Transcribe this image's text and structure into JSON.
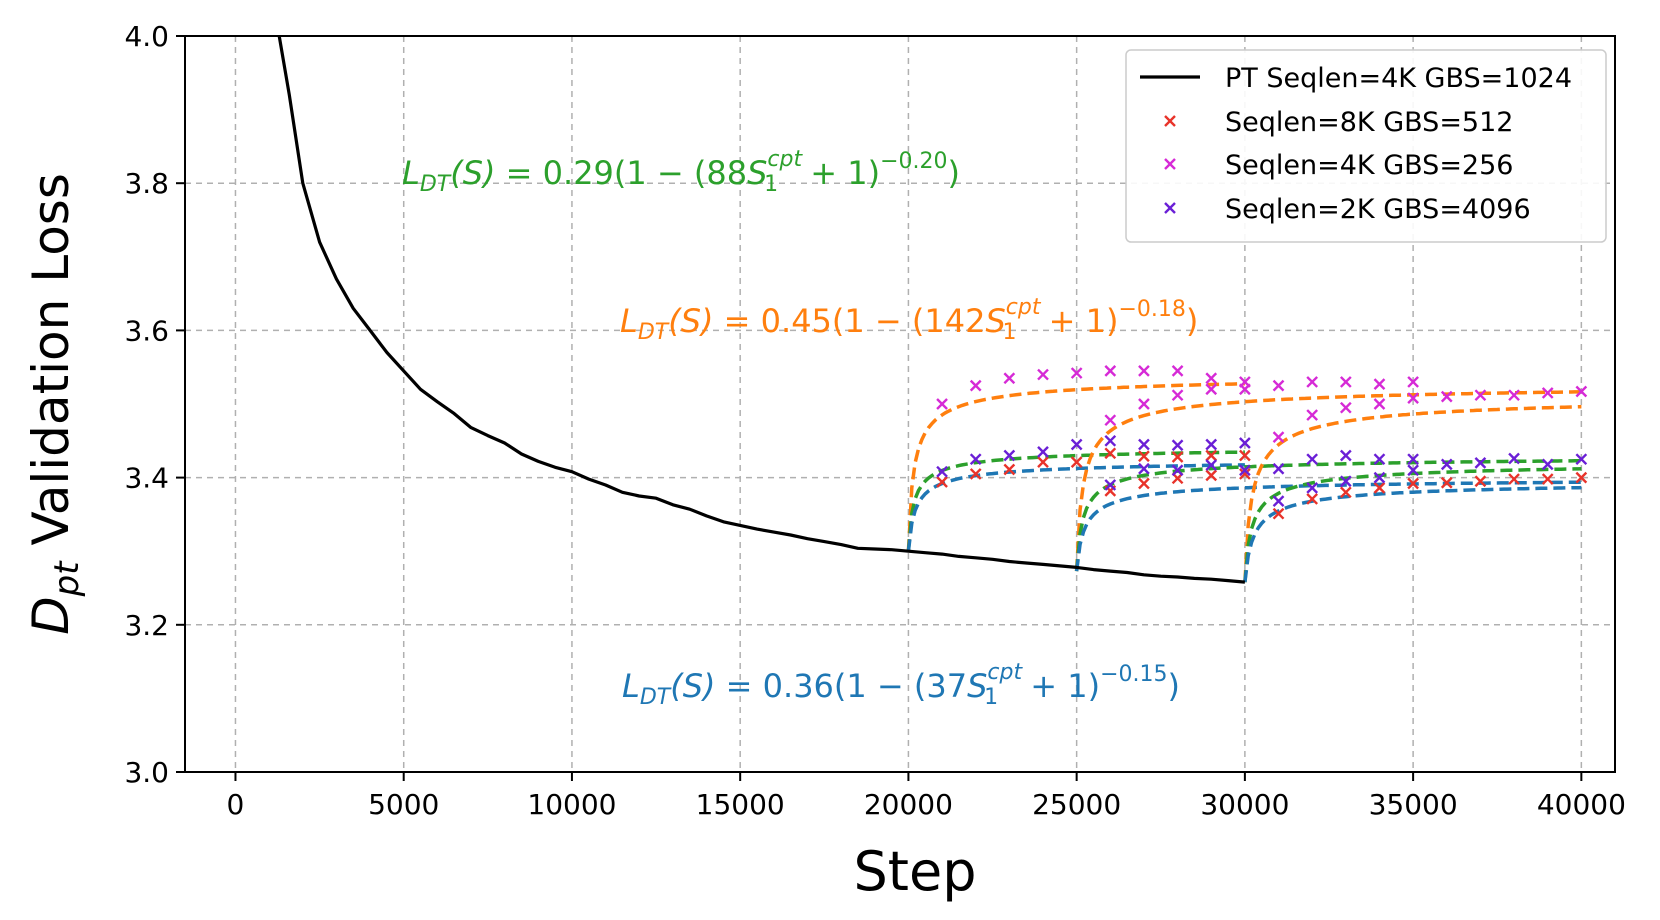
{
  "chart_data": {
    "type": "line",
    "title": "",
    "xlabel": "Step",
    "ylabel_main": "D",
    "ylabel_sub": "pt",
    "ylabel_rest": " Validation Loss",
    "xlim": [
      -1500,
      41000
    ],
    "ylim": [
      3.0,
      4.0
    ],
    "xticks": [
      0,
      5000,
      10000,
      15000,
      20000,
      25000,
      30000,
      35000,
      40000
    ],
    "xtick_labels": [
      "0",
      "5000",
      "10000",
      "15000",
      "20000",
      "25000",
      "30000",
      "35000",
      "40000"
    ],
    "yticks": [
      3.0,
      3.2,
      3.4,
      3.6,
      3.8,
      4.0
    ],
    "ytick_labels": [
      "3.0",
      "3.2",
      "3.4",
      "3.6",
      "3.8",
      "4.0"
    ],
    "grid": true,
    "legend_position": "top-right",
    "legend": [
      {
        "label": "PT Seqlen=4K GBS=1024",
        "kind": "line",
        "color": "#000000"
      },
      {
        "label": "Seqlen=8K GBS=512",
        "kind": "marker",
        "color": "#e8332a"
      },
      {
        "label": "Seqlen=4K GBS=256",
        "kind": "marker",
        "color": "#d62ad6"
      },
      {
        "label": "Seqlen=2K GBS=4096",
        "kind": "marker",
        "color": "#6a1fd6"
      }
    ],
    "annotations": [
      {
        "color": "#2ca02c",
        "lhs": "L",
        "lhs_sub": "DT",
        "arg": "(S)",
        "coef": " = 0.29(1 − (88",
        "s": "S",
        "s_sub": "1",
        "s_sup": "cpt",
        "tail": " + 1)",
        "exp": "−0.20",
        "close": ")"
      },
      {
        "color": "#ff7f0e",
        "lhs": "L",
        "lhs_sub": "DT",
        "arg": "(S)",
        "coef": " = 0.45(1 − (142",
        "s": "S",
        "s_sub": "1",
        "s_sup": "cpt",
        "tail": " + 1)",
        "exp": "−0.18",
        "close": ")"
      },
      {
        "color": "#1f77b4",
        "lhs": "L",
        "lhs_sub": "DT",
        "arg": "(S)",
        "coef": " = 0.36(1 − (37",
        "s": "S",
        "s_sub": "1",
        "s_sup": "cpt",
        "tail": " + 1)",
        "exp": "−0.15",
        "close": ")"
      }
    ],
    "pt_curve": {
      "name": "PT Seqlen=4K GBS=1024",
      "color": "#000000",
      "x": [
        1300,
        1600,
        2000,
        2500,
        3000,
        3500,
        4000,
        4500,
        5000,
        5500,
        6000,
        6500,
        7000,
        7500,
        8000,
        8500,
        9000,
        9500,
        10000,
        10500,
        11000,
        11500,
        12000,
        12500,
        13000,
        13500,
        14000,
        14500,
        15000,
        15500,
        16000,
        16500,
        17000,
        17500,
        18000,
        18500,
        19000,
        19500,
        20000,
        20500,
        21000,
        21500,
        22000,
        22500,
        23000,
        23500,
        24000,
        24500,
        25000,
        25500,
        26000,
        26500,
        27000,
        27500,
        28000,
        28500,
        29000,
        29500,
        30000
      ],
      "y": [
        4.0,
        3.92,
        3.8,
        3.72,
        3.67,
        3.63,
        3.6,
        3.57,
        3.545,
        3.52,
        3.503,
        3.487,
        3.468,
        3.457,
        3.447,
        3.432,
        3.422,
        3.414,
        3.408,
        3.398,
        3.39,
        3.38,
        3.375,
        3.372,
        3.363,
        3.357,
        3.348,
        3.34,
        3.335,
        3.33,
        3.326,
        3.322,
        3.317,
        3.313,
        3.309,
        3.304,
        3.303,
        3.302,
        3.3,
        3.298,
        3.296,
        3.293,
        3.291,
        3.289,
        3.286,
        3.284,
        3.282,
        3.28,
        3.278,
        3.275,
        3.273,
        3.271,
        3.268,
        3.266,
        3.265,
        3.263,
        3.262,
        3.26,
        3.258
      ]
    },
    "fit_curves": [
      {
        "start": 20000,
        "base": 3.3,
        "color": "#ff7f0e",
        "A": 0.245,
        "k": 0.0012,
        "end": 30000
      },
      {
        "start": 20000,
        "base": 3.3,
        "color": "#2ca02c",
        "A": 0.145,
        "k": 0.0012,
        "end": 30000
      },
      {
        "start": 20000,
        "base": 3.3,
        "color": "#1f77b4",
        "A": 0.128,
        "k": 0.0009,
        "end": 30000
      },
      {
        "start": 25000,
        "base": 3.273,
        "color": "#ff7f0e",
        "A": 0.26,
        "k": 0.001,
        "end": 40000
      },
      {
        "start": 25000,
        "base": 3.273,
        "color": "#2ca02c",
        "A": 0.16,
        "k": 0.001,
        "end": 40000
      },
      {
        "start": 25000,
        "base": 3.273,
        "color": "#1f77b4",
        "A": 0.13,
        "k": 0.0008,
        "end": 40000
      },
      {
        "start": 30000,
        "base": 3.258,
        "color": "#ff7f0e",
        "A": 0.26,
        "k": 0.0009,
        "end": 40000
      },
      {
        "start": 30000,
        "base": 3.258,
        "color": "#2ca02c",
        "A": 0.168,
        "k": 0.0009,
        "end": 40000
      },
      {
        "start": 30000,
        "base": 3.258,
        "color": "#1f77b4",
        "A": 0.142,
        "k": 0.0007,
        "end": 40000
      }
    ],
    "marker_series": [
      {
        "name": "Seqlen=8K GBS=512",
        "color": "#e8332a",
        "points": [
          [
            21000,
            3.394
          ],
          [
            22000,
            3.405
          ],
          [
            23000,
            3.411
          ],
          [
            24000,
            3.421
          ],
          [
            25000,
            3.421
          ],
          [
            26000,
            3.382
          ],
          [
            26000,
            3.433
          ],
          [
            27000,
            3.392
          ],
          [
            27000,
            3.429
          ],
          [
            28000,
            3.399
          ],
          [
            28000,
            3.428
          ],
          [
            29000,
            3.403
          ],
          [
            29000,
            3.43
          ],
          [
            30000,
            3.405
          ],
          [
            30000,
            3.43
          ],
          [
            31000,
            3.351
          ],
          [
            32000,
            3.371
          ],
          [
            33000,
            3.38
          ],
          [
            34000,
            3.386
          ],
          [
            35000,
            3.392
          ],
          [
            36000,
            3.393
          ],
          [
            37000,
            3.395
          ],
          [
            38000,
            3.398
          ],
          [
            39000,
            3.398
          ],
          [
            40000,
            3.4
          ]
        ]
      },
      {
        "name": "Seqlen=4K GBS=256",
        "color": "#d62ad6",
        "points": [
          [
            21000,
            3.5
          ],
          [
            22000,
            3.525
          ],
          [
            23000,
            3.535
          ],
          [
            24000,
            3.54
          ],
          [
            25000,
            3.542
          ],
          [
            26000,
            3.545
          ],
          [
            26000,
            3.478
          ],
          [
            27000,
            3.545
          ],
          [
            27000,
            3.5
          ],
          [
            28000,
            3.545
          ],
          [
            28000,
            3.512
          ],
          [
            29000,
            3.52
          ],
          [
            29000,
            3.535
          ],
          [
            30000,
            3.53
          ],
          [
            30000,
            3.52
          ],
          [
            31000,
            3.455
          ],
          [
            31000,
            3.525
          ],
          [
            32000,
            3.485
          ],
          [
            32000,
            3.53
          ],
          [
            33000,
            3.495
          ],
          [
            33000,
            3.53
          ],
          [
            34000,
            3.5
          ],
          [
            34000,
            3.527
          ],
          [
            35000,
            3.508
          ],
          [
            35000,
            3.53
          ],
          [
            36000,
            3.51
          ],
          [
            37000,
            3.512
          ],
          [
            38000,
            3.512
          ],
          [
            39000,
            3.515
          ],
          [
            40000,
            3.517
          ]
        ]
      },
      {
        "name": "Seqlen=2K GBS=4096",
        "color": "#6a1fd6",
        "points": [
          [
            21000,
            3.408
          ],
          [
            22000,
            3.425
          ],
          [
            23000,
            3.43
          ],
          [
            24000,
            3.435
          ],
          [
            25000,
            3.445
          ],
          [
            26000,
            3.45
          ],
          [
            26000,
            3.39
          ],
          [
            27000,
            3.445
          ],
          [
            27000,
            3.412
          ],
          [
            28000,
            3.444
          ],
          [
            28000,
            3.41
          ],
          [
            29000,
            3.445
          ],
          [
            29000,
            3.417
          ],
          [
            30000,
            3.447
          ],
          [
            30000,
            3.41
          ],
          [
            31000,
            3.368
          ],
          [
            31000,
            3.412
          ],
          [
            32000,
            3.386
          ],
          [
            32000,
            3.425
          ],
          [
            33000,
            3.395
          ],
          [
            33000,
            3.43
          ],
          [
            34000,
            3.4
          ],
          [
            34000,
            3.425
          ],
          [
            35000,
            3.41
          ],
          [
            35000,
            3.425
          ],
          [
            36000,
            3.418
          ],
          [
            37000,
            3.42
          ],
          [
            38000,
            3.426
          ],
          [
            39000,
            3.418
          ],
          [
            40000,
            3.425
          ]
        ]
      }
    ]
  }
}
